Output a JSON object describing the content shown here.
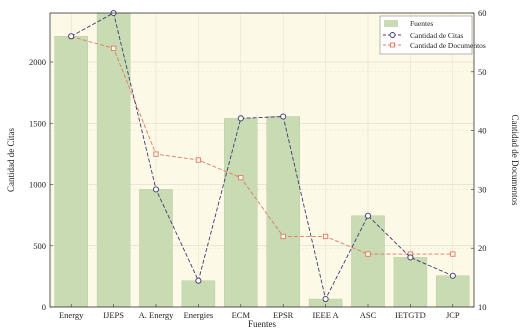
{
  "chart_data": {
    "type": "bar",
    "categories": [
      "Energy",
      "IJEPS",
      "A. Energy",
      "Energies",
      "ECM",
      "EPSR",
      "IEEE A",
      "ASC",
      "IETGTD",
      "JCP"
    ],
    "xlabel": "Fuentes",
    "ylabel": "Cantidad de Citas",
    "y2label": "Cantidad de Documentos",
    "ylim": [
      0,
      2400
    ],
    "y2lim": [
      10,
      60
    ],
    "yticks": [
      0,
      500,
      1000,
      1500,
      2000
    ],
    "y2ticks": [
      10,
      20,
      30,
      40,
      50,
      60
    ],
    "grid": true,
    "legend_position": "top-right",
    "series": [
      {
        "name": "Fuentes",
        "type": "bar",
        "axis": "left",
        "color": "#c8dbb2",
        "values": [
          2210,
          2400,
          960,
          215,
          1540,
          1555,
          65,
          745,
          405,
          255
        ]
      },
      {
        "name": "Cantidad de Citas",
        "type": "line",
        "axis": "left",
        "color": "#3d3a78",
        "marker": "circle",
        "values": [
          2210,
          2400,
          960,
          215,
          1540,
          1555,
          65,
          745,
          405,
          255
        ]
      },
      {
        "name": "Cantidad de Documentos",
        "type": "line",
        "axis": "right",
        "color": "#e07a67",
        "marker": "square",
        "values": [
          56,
          54,
          36,
          35,
          32,
          22,
          22,
          19,
          19,
          19
        ]
      }
    ]
  }
}
